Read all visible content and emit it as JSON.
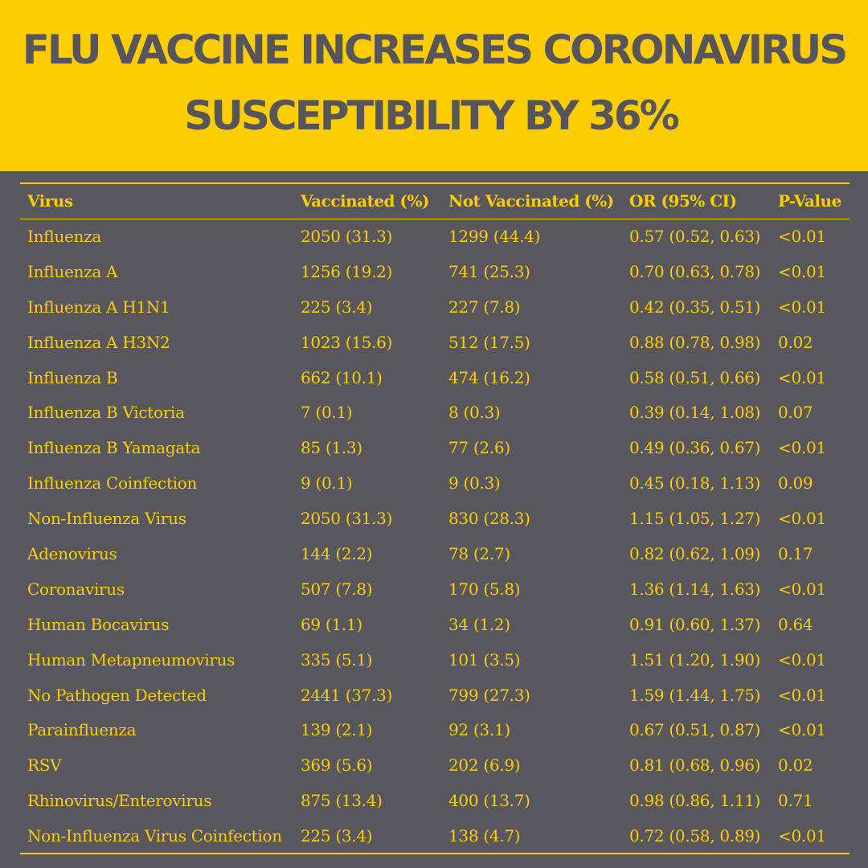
{
  "title": {
    "line1": "FLU VACCINE INCREASES CORONAVIRUS",
    "line2": "SUSCEPTIBILITY BY 36%"
  },
  "colors": {
    "accent_yellow": "#fdcd03",
    "background_gray": "#58575d",
    "title_text": "#56555b"
  },
  "table": {
    "headers": [
      "Virus",
      "Vaccinated (%)",
      "Not Vaccinated (%)",
      "OR (95% CI)",
      "P-Value"
    ],
    "rows": [
      [
        "Influenza",
        "2050 (31.3)",
        "1299 (44.4)",
        "0.57 (0.52, 0.63)",
        "<0.01"
      ],
      [
        "Influenza A",
        "1256 (19.2)",
        "741 (25.3)",
        "0.70 (0.63, 0.78)",
        "<0.01"
      ],
      [
        "Influenza A H1N1",
        "225 (3.4)",
        "227 (7.8)",
        "0.42 (0.35, 0.51)",
        "<0.01"
      ],
      [
        "Influenza A H3N2",
        "1023 (15.6)",
        "512 (17.5)",
        "0.88 (0.78, 0.98)",
        "0.02"
      ],
      [
        "Influenza B",
        "662 (10.1)",
        "474 (16.2)",
        "0.58 (0.51, 0.66)",
        "<0.01"
      ],
      [
        "Influenza B Victoria",
        "7 (0.1)",
        "8 (0.3)",
        "0.39 (0.14, 1.08)",
        "0.07"
      ],
      [
        "Influenza B Yamagata",
        "85 (1.3)",
        "77 (2.6)",
        "0.49 (0.36, 0.67)",
        "<0.01"
      ],
      [
        "Influenza Coinfection",
        "9 (0.1)",
        "9 (0.3)",
        "0.45 (0.18, 1.13)",
        "0.09"
      ],
      [
        "Non-Influenza Virus",
        "2050 (31.3)",
        "830 (28.3)",
        "1.15 (1.05, 1.27)",
        "<0.01"
      ],
      [
        "Adenovirus",
        "144 (2.2)",
        "78 (2.7)",
        "0.82 (0.62, 1.09)",
        "0.17"
      ],
      [
        "Coronavirus",
        "507 (7.8)",
        "170 (5.8)",
        "1.36 (1.14, 1.63)",
        "<0.01"
      ],
      [
        "Human Bocavirus",
        "69 (1.1)",
        "34 (1.2)",
        "0.91 (0.60, 1.37)",
        "0.64"
      ],
      [
        "Human Metapneumovirus",
        "335 (5.1)",
        "101 (3.5)",
        "1.51 (1.20, 1.90)",
        "<0.01"
      ],
      [
        "No Pathogen Detected",
        "2441 (37.3)",
        "799 (27.3)",
        "1.59 (1.44, 1.75)",
        "<0.01"
      ],
      [
        "Parainfluenza",
        "139 (2.1)",
        "92 (3.1)",
        "0.67 (0.51, 0.87)",
        "<0.01"
      ],
      [
        "RSV",
        "369 (5.6)",
        "202 (6.9)",
        "0.81 (0.68, 0.96)",
        "0.02"
      ],
      [
        "Rhinovirus/Enterovirus",
        "875 (13.4)",
        "400 (13.7)",
        "0.98 (0.86, 1.11)",
        "0.71"
      ],
      [
        "Non-Influenza Virus Coinfection",
        "225 (3.4)",
        "138 (4.7)",
        "0.72 (0.58, 0.89)",
        "<0.01"
      ]
    ]
  }
}
